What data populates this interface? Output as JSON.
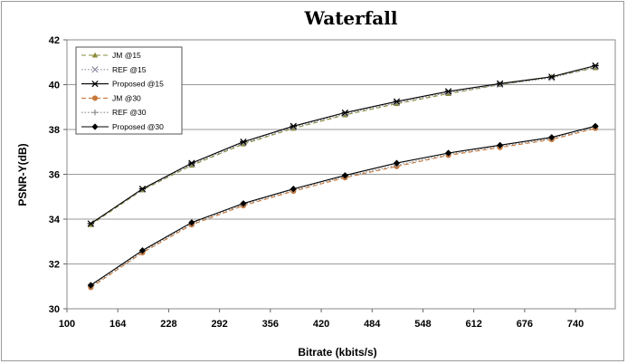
{
  "chart_data": {
    "type": "line",
    "title": "Waterfall",
    "xlabel": "Bitrate (kbits/s)",
    "ylabel": "PSNR-Y(dB)",
    "xlim": [
      100,
      790
    ],
    "ylim": [
      30,
      42
    ],
    "xticks": [
      "100",
      "164",
      "228",
      "292",
      "356",
      "420",
      "484",
      "548",
      "612",
      "676",
      "740"
    ],
    "yticks": [
      "30",
      "32",
      "34",
      "36",
      "38",
      "40",
      "42"
    ],
    "grid": "horizontal",
    "legend_position": "top-left",
    "series": [
      {
        "name": "JM @15",
        "color": "#8a8a3a",
        "dash": "dashed",
        "marker": "triangle",
        "x": [
          130,
          195,
          257,
          322,
          385,
          450,
          515,
          580,
          645,
          710,
          765
        ],
        "y": [
          33.75,
          35.3,
          36.4,
          37.35,
          38.05,
          38.65,
          39.15,
          39.6,
          40.0,
          40.35,
          40.75
        ]
      },
      {
        "name": "REF @15",
        "color": "#8a8aa0",
        "dash": "dotted",
        "marker": "x",
        "x": [
          130,
          195,
          257,
          322,
          385,
          450,
          515,
          580,
          645,
          710,
          765
        ],
        "y": [
          33.8,
          35.32,
          36.45,
          37.4,
          38.1,
          38.7,
          39.2,
          39.65,
          40.0,
          40.3,
          40.8
        ]
      },
      {
        "name": "Proposed @15",
        "color": "#000000",
        "dash": "solid",
        "marker": "star",
        "x": [
          130,
          195,
          257,
          322,
          385,
          450,
          515,
          580,
          645,
          710,
          765
        ],
        "y": [
          33.8,
          35.35,
          36.5,
          37.45,
          38.15,
          38.75,
          39.25,
          39.7,
          40.05,
          40.35,
          40.85
        ]
      },
      {
        "name": "JM @30",
        "color": "#c8783a",
        "dash": "dashed",
        "marker": "circle",
        "x": [
          130,
          195,
          257,
          322,
          385,
          450,
          515,
          580,
          645,
          710,
          765
        ],
        "y": [
          30.95,
          32.5,
          33.75,
          34.6,
          35.25,
          35.85,
          36.35,
          36.85,
          37.2,
          37.55,
          38.05
        ]
      },
      {
        "name": "REF @30",
        "color": "#8a8a8a",
        "dash": "dotted",
        "marker": "plus",
        "x": [
          130,
          195,
          257,
          322,
          385,
          450,
          515,
          580,
          645,
          710,
          765
        ],
        "y": [
          31.0,
          32.55,
          33.8,
          34.65,
          35.3,
          35.9,
          36.4,
          36.9,
          37.25,
          37.6,
          38.1
        ]
      },
      {
        "name": "Proposed @30",
        "color": "#000000",
        "dash": "solid",
        "marker": "diamond",
        "x": [
          130,
          195,
          257,
          322,
          385,
          450,
          515,
          580,
          645,
          710,
          765
        ],
        "y": [
          31.05,
          32.6,
          33.85,
          34.7,
          35.35,
          35.95,
          36.5,
          36.95,
          37.3,
          37.65,
          38.15
        ]
      }
    ]
  }
}
